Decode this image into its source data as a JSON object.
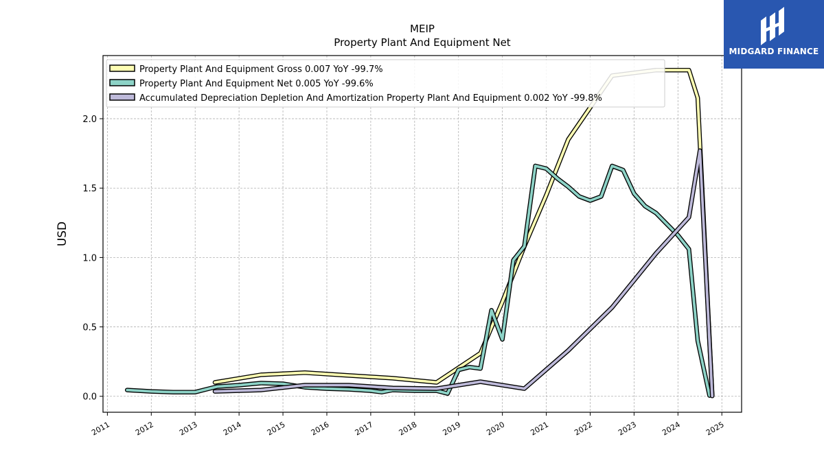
{
  "chart_data": {
    "type": "line",
    "title": "MEIP",
    "subtitle": "Property Plant And Equipment Net",
    "ylabel": "USD",
    "xlabel": "",
    "xlim": [
      2010.9,
      2025.45
    ],
    "ylim": [
      -0.115,
      2.455
    ],
    "x_ticks": [
      "2011",
      "2012",
      "2013",
      "2014",
      "2015",
      "2016",
      "2017",
      "2018",
      "2019",
      "2020",
      "2021",
      "2022",
      "2023",
      "2024",
      "2025"
    ],
    "y_ticks": [
      "0.0",
      "0.5",
      "1.0",
      "1.5",
      "2.0"
    ],
    "grid": true,
    "legend_position": "top-left",
    "series": [
      {
        "name": "Property Plant And Equipment Gross",
        "legend": "Property Plant And Equipment Gross  0.007 YoY -99.7%",
        "color": "#ffffb3",
        "x": [
          2013.45,
          2014.5,
          2015.5,
          2016.5,
          2017.5,
          2018.5,
          2019.5,
          2020.0,
          2020.5,
          2021.0,
          2021.5,
          2022.5,
          2023.5,
          2024.25,
          2024.45,
          2024.78
        ],
        "y": [
          0.1,
          0.155,
          0.17,
          0.15,
          0.13,
          0.1,
          0.31,
          0.68,
          1.08,
          1.45,
          1.85,
          2.31,
          2.35,
          2.35,
          2.15,
          0.007
        ]
      },
      {
        "name": "Property Plant And Equipment Net",
        "legend": "Property Plant And Equipment Net  0.005 YoY -99.6%",
        "color": "#8dd3c7",
        "x": [
          2011.45,
          2012.0,
          2012.5,
          2013.0,
          2013.25,
          2013.5,
          2014.0,
          2014.5,
          2015.0,
          2015.5,
          2016.0,
          2016.5,
          2017.0,
          2017.25,
          2017.5,
          2018.0,
          2018.5,
          2018.75,
          2019.0,
          2019.25,
          2019.5,
          2019.75,
          2020.0,
          2020.25,
          2020.5,
          2020.75,
          2021.0,
          2021.25,
          2021.5,
          2021.75,
          2022.0,
          2022.25,
          2022.5,
          2022.75,
          2023.0,
          2023.25,
          2023.5,
          2023.75,
          2024.0,
          2024.25,
          2024.45,
          2024.72
        ],
        "y": [
          0.045,
          0.035,
          0.03,
          0.03,
          0.05,
          0.07,
          0.08,
          0.095,
          0.09,
          0.065,
          0.055,
          0.05,
          0.04,
          0.03,
          0.045,
          0.04,
          0.04,
          0.02,
          0.19,
          0.21,
          0.2,
          0.62,
          0.41,
          0.98,
          1.08,
          1.66,
          1.64,
          1.57,
          1.51,
          1.44,
          1.41,
          1.44,
          1.66,
          1.63,
          1.46,
          1.37,
          1.32,
          1.24,
          1.16,
          1.06,
          0.4,
          0.005
        ]
      },
      {
        "name": "Accumulated Depreciation Depletion And Amortization Property Plant And Equipment",
        "legend": "Accumulated Depreciation Depletion And Amortization Property Plant And Equipment  0.002 YoY -99.8%",
        "color": "#bebada",
        "x": [
          2013.45,
          2014.5,
          2015.5,
          2016.5,
          2017.5,
          2018.5,
          2019.5,
          2020.5,
          2021.5,
          2022.5,
          2023.5,
          2024.25,
          2024.5,
          2024.78
        ],
        "y": [
          0.035,
          0.045,
          0.08,
          0.08,
          0.06,
          0.055,
          0.105,
          0.055,
          0.33,
          0.64,
          1.03,
          1.29,
          1.77,
          0.002
        ]
      }
    ]
  },
  "logo": {
    "text": "MIDGARD FINANCE",
    "background": "#2957b0"
  }
}
